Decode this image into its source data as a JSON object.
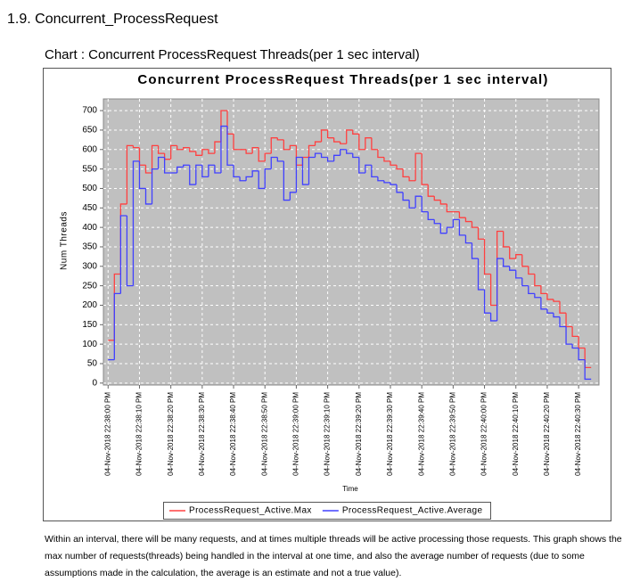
{
  "heading": "1.9. Concurrent_ProcessRequest",
  "caption": "Chart : Concurrent ProcessRequest Threads(per 1 sec interval)",
  "chart_data": {
    "type": "step",
    "title": "Concurrent ProcessRequest Threads(per 1 sec interval)",
    "x_label": "Time",
    "y_label": "Num Threads",
    "x": [
      0,
      2,
      4,
      6,
      8,
      10,
      12,
      14,
      16,
      18,
      20,
      22,
      24,
      26,
      28,
      30,
      32,
      34,
      36,
      38,
      40,
      42,
      44,
      46,
      48,
      50,
      52,
      54,
      56,
      58,
      60,
      62,
      64,
      66,
      68,
      70,
      72,
      74,
      76,
      78,
      80,
      82,
      84,
      86,
      88,
      90,
      92,
      94,
      96,
      98,
      100,
      102,
      104,
      106,
      108,
      110,
      112,
      114,
      116,
      118,
      120,
      122,
      124,
      126,
      128,
      130,
      132,
      134,
      136,
      138,
      140,
      142,
      144,
      146,
      148,
      150,
      152
    ],
    "series": [
      {
        "name": "ProcessRequest_Active.Max",
        "color": "#ff4040",
        "values": [
          110,
          280,
          460,
          610,
          605,
          560,
          540,
          610,
          590,
          575,
          610,
          600,
          605,
          595,
          585,
          600,
          590,
          620,
          700,
          640,
          600,
          600,
          590,
          605,
          570,
          590,
          630,
          625,
          600,
          610,
          560,
          580,
          610,
          620,
          650,
          630,
          620,
          615,
          650,
          640,
          600,
          630,
          600,
          580,
          570,
          560,
          550,
          530,
          520,
          590,
          510,
          480,
          470,
          460,
          440,
          440,
          425,
          415,
          400,
          370,
          280,
          200,
          390,
          350,
          320,
          330,
          300,
          280,
          250,
          230,
          215,
          210,
          180,
          145,
          120,
          90,
          40
        ]
      },
      {
        "name": "ProcessRequest_Active.Average",
        "color": "#4040ff",
        "values": [
          60,
          230,
          430,
          250,
          570,
          500,
          460,
          550,
          580,
          540,
          540,
          555,
          560,
          510,
          560,
          530,
          560,
          540,
          660,
          560,
          530,
          520,
          530,
          545,
          500,
          550,
          580,
          570,
          470,
          490,
          580,
          510,
          580,
          590,
          580,
          570,
          585,
          600,
          590,
          580,
          540,
          560,
          530,
          520,
          515,
          510,
          490,
          470,
          450,
          480,
          440,
          420,
          410,
          385,
          400,
          420,
          380,
          360,
          320,
          240,
          180,
          160,
          320,
          300,
          290,
          270,
          250,
          230,
          220,
          190,
          180,
          170,
          145,
          100,
          90,
          60,
          10
        ]
      }
    ],
    "xlim": [
      -1.5,
      156.5
    ],
    "xticks": [
      {
        "value": 0,
        "label": "04-Nov-2018 22:38:00 PM"
      },
      {
        "value": 10,
        "label": "04-Nov-2018 22:38:10 PM"
      },
      {
        "value": 20,
        "label": "04-Nov-2018 22:38:20 PM"
      },
      {
        "value": 30,
        "label": "04-Nov-2018 22:38:30 PM"
      },
      {
        "value": 40,
        "label": "04-Nov-2018 22:38:40 PM"
      },
      {
        "value": 50,
        "label": "04-Nov-2018 22:38:50 PM"
      },
      {
        "value": 60,
        "label": "04-Nov-2018 22:39:00 PM"
      },
      {
        "value": 70,
        "label": "04-Nov-2018 22:39:10 PM"
      },
      {
        "value": 80,
        "label": "04-Nov-2018 22:39:20 PM"
      },
      {
        "value": 90,
        "label": "04-Nov-2018 22:39:30 PM"
      },
      {
        "value": 100,
        "label": "04-Nov-2018 22:39:40 PM"
      },
      {
        "value": 110,
        "label": "04-Nov-2018 22:39:50 PM"
      },
      {
        "value": 120,
        "label": "04-Nov-2018 22:40:00 PM"
      },
      {
        "value": 130,
        "label": "04-Nov-2018 22:40:10 PM"
      },
      {
        "value": 140,
        "label": "04-Nov-2018 22:40:20 PM"
      },
      {
        "value": 150,
        "label": "04-Nov-2018 22:40:30 PM"
      }
    ],
    "ylim": [
      -5,
      730
    ],
    "yticks": [
      0,
      50,
      100,
      150,
      200,
      250,
      300,
      350,
      400,
      450,
      500,
      550,
      600,
      650,
      700
    ],
    "grid": true,
    "legend": "bottom"
  },
  "description": "Within an interval, there will be many requests, and at times multiple threads will be active processing those requests.  This graph shows the max number of requests(threads) being handled in the interval at one time, and also the average number of requests (due to some assumptions made in the calculation, the average is an estimate and not a true value)."
}
